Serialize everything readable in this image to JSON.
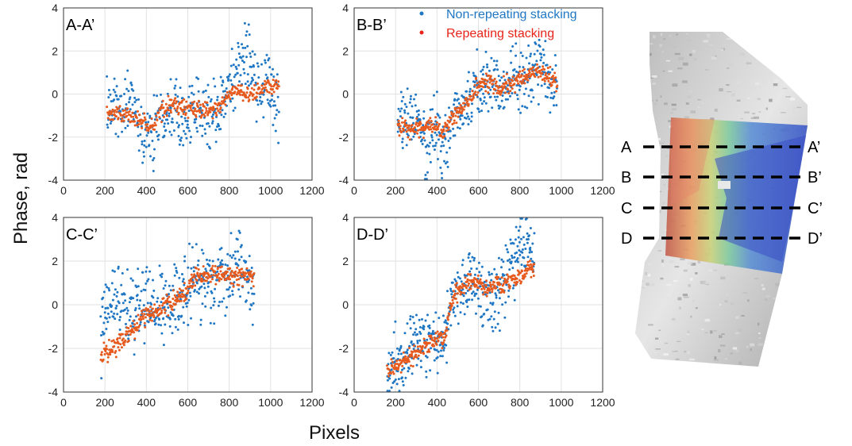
{
  "figure": {
    "xlabel": "Pixels",
    "ylabel": "Phase, rad"
  },
  "legend": {
    "entries": [
      {
        "label": "Non-repeating stacking",
        "color": "#1f77c4"
      },
      {
        "label": "Repeating stacking",
        "color": "#e8241a"
      }
    ]
  },
  "colors": {
    "non_repeating": "#1f77c4",
    "repeating": "#e65a1e",
    "grid": "#e2e2e2",
    "axes": "#333333"
  },
  "chart_data": [
    {
      "type": "scatter",
      "title": "A-A’",
      "xlim": [
        0,
        1200
      ],
      "ylim": [
        -4,
        4
      ],
      "xticks": [
        0,
        200,
        400,
        600,
        800,
        1000,
        1200
      ],
      "yticks": [
        -4,
        -2,
        0,
        2,
        4
      ],
      "xlabel": "",
      "ylabel": "",
      "grid": true,
      "x_range": [
        210,
        1040
      ],
      "series": [
        {
          "name": "Non-repeating stacking",
          "anchors": [
            [
              210,
              -0.8
            ],
            [
              280,
              -0.6
            ],
            [
              330,
              -0.3
            ],
            [
              380,
              -1.6
            ],
            [
              420,
              -2.2
            ],
            [
              450,
              -1.2
            ],
            [
              490,
              -0.5
            ],
            [
              540,
              -0.5
            ],
            [
              600,
              -1.3
            ],
            [
              650,
              -0.8
            ],
            [
              700,
              -1.0
            ],
            [
              750,
              -0.8
            ],
            [
              800,
              0.3
            ],
            [
              850,
              1.2
            ],
            [
              880,
              2.2
            ],
            [
              900,
              1.8
            ],
            [
              930,
              0.1
            ],
            [
              980,
              0.3
            ],
            [
              1040,
              -0.5
            ]
          ],
          "spread": 0.75
        },
        {
          "name": "Repeating stacking",
          "anchors": [
            [
              210,
              -0.9
            ],
            [
              300,
              -1.0
            ],
            [
              380,
              -1.3
            ],
            [
              420,
              -1.6
            ],
            [
              470,
              -0.9
            ],
            [
              530,
              -0.4
            ],
            [
              600,
              -0.7
            ],
            [
              700,
              -0.8
            ],
            [
              760,
              -0.5
            ],
            [
              800,
              0.1
            ],
            [
              850,
              0.2
            ],
            [
              900,
              -0.2
            ],
            [
              960,
              0.3
            ],
            [
              1040,
              0.3
            ]
          ],
          "spread": 0.2
        }
      ]
    },
    {
      "type": "scatter",
      "title": "B-B’",
      "xlim": [
        0,
        1200
      ],
      "ylim": [
        -4,
        4
      ],
      "xticks": [
        0,
        200,
        400,
        600,
        800,
        1000,
        1200
      ],
      "yticks": [
        -4,
        -2,
        0,
        2,
        4
      ],
      "xlabel": "",
      "ylabel": "",
      "grid": true,
      "x_range": [
        210,
        980
      ],
      "series": [
        {
          "name": "Non-repeating stacking",
          "anchors": [
            [
              210,
              -1.6
            ],
            [
              260,
              -1.4
            ],
            [
              300,
              -1.0
            ],
            [
              350,
              -2.4
            ],
            [
              390,
              -1.4
            ],
            [
              420,
              -2.8
            ],
            [
              450,
              -2.0
            ],
            [
              500,
              -0.8
            ],
            [
              550,
              -0.2
            ],
            [
              600,
              0.3
            ],
            [
              650,
              0.5
            ],
            [
              700,
              0.1
            ],
            [
              750,
              0.6
            ],
            [
              800,
              0.6
            ],
            [
              850,
              0.9
            ],
            [
              900,
              1.2
            ],
            [
              940,
              0.5
            ],
            [
              980,
              0.4
            ]
          ],
          "spread": 0.75
        },
        {
          "name": "Repeating stacking",
          "anchors": [
            [
              210,
              -1.6
            ],
            [
              300,
              -1.6
            ],
            [
              380,
              -1.4
            ],
            [
              420,
              -1.8
            ],
            [
              480,
              -1.0
            ],
            [
              540,
              -0.4
            ],
            [
              600,
              0.4
            ],
            [
              650,
              0.6
            ],
            [
              700,
              0.3
            ],
            [
              760,
              0.5
            ],
            [
              820,
              0.8
            ],
            [
              880,
              1.2
            ],
            [
              940,
              0.7
            ],
            [
              980,
              0.6
            ]
          ],
          "spread": 0.2
        }
      ]
    },
    {
      "type": "scatter",
      "title": "C-C’",
      "xlim": [
        0,
        1200
      ],
      "ylim": [
        -4,
        4
      ],
      "xticks": [
        0,
        200,
        400,
        600,
        800,
        1000,
        1200
      ],
      "yticks": [
        -4,
        -2,
        0,
        2,
        4
      ],
      "xlabel": "",
      "ylabel": "",
      "grid": true,
      "x_range": [
        180,
        920
      ],
      "series": [
        {
          "name": "Non-repeating stacking",
          "anchors": [
            [
              180,
              -1.5
            ],
            [
              220,
              0.2
            ],
            [
              260,
              0.4
            ],
            [
              300,
              -0.2
            ],
            [
              340,
              -0.3
            ],
            [
              380,
              0.0
            ],
            [
              420,
              -0.3
            ],
            [
              460,
              -0.2
            ],
            [
              500,
              -0.2
            ],
            [
              550,
              0.1
            ],
            [
              600,
              0.8
            ],
            [
              650,
              1.2
            ],
            [
              700,
              1.0
            ],
            [
              750,
              1.3
            ],
            [
              800,
              1.2
            ],
            [
              850,
              1.8
            ],
            [
              880,
              1.0
            ],
            [
              920,
              0.8
            ]
          ],
          "spread": 0.8
        },
        {
          "name": "Repeating stacking",
          "anchors": [
            [
              180,
              -2.3
            ],
            [
              240,
              -2.0
            ],
            [
              300,
              -1.4
            ],
            [
              350,
              -1.0
            ],
            [
              400,
              -0.5
            ],
            [
              460,
              -0.2
            ],
            [
              520,
              0.1
            ],
            [
              580,
              0.5
            ],
            [
              630,
              1.2
            ],
            [
              700,
              1.4
            ],
            [
              780,
              1.3
            ],
            [
              850,
              1.3
            ],
            [
              920,
              1.4
            ]
          ],
          "spread": 0.22
        }
      ]
    },
    {
      "type": "scatter",
      "title": "D-D’",
      "xlim": [
        0,
        1200
      ],
      "ylim": [
        -4,
        4
      ],
      "xticks": [
        0,
        200,
        400,
        600,
        800,
        1000,
        1200
      ],
      "yticks": [
        -4,
        -2,
        0,
        2,
        4
      ],
      "xlabel": "",
      "ylabel": "",
      "grid": true,
      "x_range": [
        160,
        870
      ],
      "series": [
        {
          "name": "Non-repeating stacking",
          "anchors": [
            [
              160,
              -3.0
            ],
            [
              220,
              -2.6
            ],
            [
              280,
              -2.0
            ],
            [
              340,
              -1.8
            ],
            [
              400,
              -1.8
            ],
            [
              440,
              -1.5
            ],
            [
              480,
              0.5
            ],
            [
              520,
              0.9
            ],
            [
              560,
              1.4
            ],
            [
              600,
              0.6
            ],
            [
              640,
              0.2
            ],
            [
              680,
              0.0
            ],
            [
              720,
              1.0
            ],
            [
              760,
              2.0
            ],
            [
              800,
              2.6
            ],
            [
              840,
              2.8
            ],
            [
              870,
              2.2
            ]
          ],
          "spread": 0.75
        },
        {
          "name": "Repeating stacking",
          "anchors": [
            [
              160,
              -3.0
            ],
            [
              220,
              -2.7
            ],
            [
              280,
              -2.4
            ],
            [
              340,
              -2.0
            ],
            [
              400,
              -1.6
            ],
            [
              440,
              -1.4
            ],
            [
              480,
              0.4
            ],
            [
              520,
              0.8
            ],
            [
              560,
              1.2
            ],
            [
              620,
              0.8
            ],
            [
              700,
              0.9
            ],
            [
              760,
              1.1
            ],
            [
              820,
              1.4
            ],
            [
              870,
              1.8
            ]
          ],
          "spread": 0.2
        }
      ]
    }
  ],
  "map": {
    "profiles": [
      {
        "start": "A",
        "end": "A’"
      },
      {
        "start": "B",
        "end": "B’"
      },
      {
        "start": "C",
        "end": "C’"
      },
      {
        "start": "D",
        "end": "D’"
      }
    ]
  }
}
